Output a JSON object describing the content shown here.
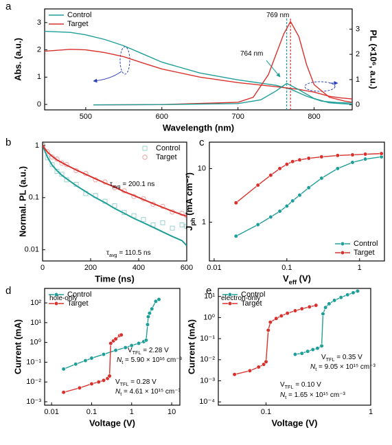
{
  "chart_data": [
    {
      "type": "line",
      "panel_label": "a",
      "xlabel": "Wavelength (nm)",
      "ylabel": "Abs. (a.u.)",
      "y2label": "PL (×10⁶, a.u.)",
      "xlim": [
        446,
        850
      ],
      "xticks": [
        500,
        600,
        700,
        800
      ],
      "ylim": [
        -0.2,
        3.5
      ],
      "yticks": [
        0,
        1,
        2,
        3
      ],
      "y2lim": [
        -0.2,
        3.8
      ],
      "y2ticks": [
        0,
        1,
        2,
        3
      ],
      "legend": "upper left",
      "series": [
        {
          "name": "Control",
          "color": "#1f9e98",
          "x": [
            446,
            480,
            500,
            525,
            550,
            575,
            600,
            650,
            700,
            750,
            770,
            790,
            810,
            830,
            850
          ],
          "values": [
            2.68,
            2.64,
            2.55,
            2.38,
            2.15,
            1.85,
            1.55,
            1.15,
            0.9,
            0.7,
            0.55,
            0.3,
            0.12,
            0.07,
            0.05
          ]
        },
        {
          "name": "Target",
          "color": "#d9302c",
          "x": [
            446,
            480,
            500,
            525,
            550,
            575,
            600,
            650,
            700,
            750,
            780,
            800,
            820,
            835,
            850
          ],
          "values": [
            1.95,
            2.02,
            2.0,
            1.9,
            1.75,
            1.52,
            1.3,
            1.0,
            0.8,
            0.65,
            0.55,
            0.45,
            0.3,
            0.24,
            0.2
          ]
        },
        {
          "color": "#d9302c",
          "axis": "y2",
          "x": [
            510,
            600,
            700,
            720,
            740,
            750,
            760,
            769,
            780,
            790,
            800,
            820,
            840,
            850
          ],
          "values": [
            0,
            0.01,
            0.1,
            0.3,
            1.2,
            2.0,
            2.8,
            3.3,
            2.7,
            1.6,
            0.8,
            0.3,
            0.15,
            0.1
          ]
        },
        {
          "color": "#1f9e98",
          "axis": "y2",
          "x": [
            510,
            600,
            700,
            730,
            750,
            764,
            780,
            800,
            820,
            850
          ],
          "values": [
            0,
            0.01,
            0.05,
            0.2,
            0.55,
            0.85,
            0.6,
            0.25,
            0.08,
            0.02
          ]
        }
      ],
      "vlines": [
        {
          "x": 769,
          "color": "#d9302c"
        },
        {
          "x": 764,
          "color": "#1f9e98"
        }
      ],
      "annotations": [
        {
          "parts": [
            {
              "text": "769 nm"
            }
          ],
          "color": "#d9302c"
        },
        {
          "parts": [
            {
              "text": "764 nm"
            }
          ],
          "color": "#1f9e98"
        }
      ]
    },
    {
      "type": "scatter",
      "panel_label": "b",
      "xlabel": "Time (ns)",
      "ylabel": "Normal. PL (a.u.)",
      "xlim": [
        0,
        600
      ],
      "xticks": [
        0,
        200,
        400,
        600
      ],
      "ylim": [
        0.0061,
        1.16
      ],
      "yscale": "log",
      "yticks": [
        0.01,
        0.1,
        1
      ],
      "legend": "upper right",
      "legend_text_colored": true,
      "series": [
        {
          "name": "Control",
          "color": "#1f9e98",
          "marker": "open-square",
          "x": [
            0,
            20,
            40,
            60,
            80,
            100,
            140,
            180,
            220,
            260,
            300,
            340,
            380,
            420,
            460,
            500,
            540,
            580,
            600
          ],
          "values": [
            1.0,
            0.58,
            0.43,
            0.32,
            0.28,
            0.22,
            0.18,
            0.12,
            0.11,
            0.085,
            0.07,
            0.052,
            0.045,
            0.038,
            0.03,
            0.033,
            0.026,
            0.03,
            0.028
          ]
        },
        {
          "name": "Target",
          "color": "#d9302c",
          "marker": "open-circle",
          "x": [
            0,
            20,
            40,
            60,
            80,
            100,
            140,
            180,
            220,
            260,
            300,
            340,
            380,
            420,
            460,
            500,
            540,
            580,
            600
          ],
          "values": [
            1.0,
            0.76,
            0.6,
            0.55,
            0.46,
            0.43,
            0.33,
            0.29,
            0.22,
            0.2,
            0.155,
            0.135,
            0.105,
            0.095,
            0.075,
            0.068,
            0.053,
            0.05,
            0.045
          ]
        },
        {
          "color": "#1f9e98",
          "style": "line",
          "x": [
            0,
            20,
            40,
            60,
            80,
            100,
            140,
            180,
            220,
            260,
            300,
            340,
            380,
            420,
            460,
            500,
            540,
            580,
            600
          ],
          "values": [
            1.0,
            0.6,
            0.42,
            0.33,
            0.27,
            0.23,
            0.17,
            0.13,
            0.1,
            0.08,
            0.062,
            0.05,
            0.04,
            0.033,
            0.027,
            0.022,
            0.018,
            0.015,
            0.012
          ]
        },
        {
          "color": "#d9302c",
          "style": "line",
          "x": [
            0,
            20,
            40,
            60,
            80,
            100,
            140,
            180,
            220,
            260,
            300,
            340,
            380,
            420,
            460,
            500,
            540,
            580,
            600
          ],
          "values": [
            1.0,
            0.75,
            0.62,
            0.53,
            0.47,
            0.42,
            0.34,
            0.28,
            0.23,
            0.19,
            0.16,
            0.13,
            0.11,
            0.092,
            0.077,
            0.065,
            0.055,
            0.047,
            0.044
          ]
        }
      ],
      "annotations": [
        {
          "parts": [
            {
              "text": "τ"
            },
            {
              "text": "avg",
              "pos": "sub"
            },
            {
              "text": " = 200.1 ns"
            }
          ],
          "color": "#d9302c"
        },
        {
          "parts": [
            {
              "text": "τ"
            },
            {
              "text": "avg",
              "pos": "sub"
            },
            {
              "text": " = 110.5 ns"
            }
          ],
          "color": "#1f9e98"
        }
      ]
    },
    {
      "type": "line",
      "panel_label": "c",
      "xlabel": [
        {
          "text": "V"
        },
        {
          "text": "eff",
          "pos": "sub"
        },
        {
          "text": " (V)"
        }
      ],
      "ylabel": [
        {
          "text": "J"
        },
        {
          "text": "ph",
          "pos": "sub"
        },
        {
          "text": " (mA cm⁻²)"
        }
      ],
      "xlim": [
        0.0086,
        2.2
      ],
      "xscale": "log",
      "xticks": [
        0.01,
        0.1,
        1
      ],
      "ylim": [
        0.19,
        31
      ],
      "yscale": "log",
      "yticks": [
        1,
        10
      ],
      "legend": "lower right",
      "series": [
        {
          "name": "Control",
          "color": "#1f9e98",
          "marker": "circle",
          "x": [
            0.02,
            0.04,
            0.06,
            0.08,
            0.1,
            0.12,
            0.15,
            0.2,
            0.3,
            0.5,
            0.8,
            1.2,
            2
          ],
          "values": [
            0.55,
            0.9,
            1.25,
            1.6,
            2.0,
            2.5,
            3.2,
            4.4,
            6.6,
            10,
            13,
            15,
            16.5
          ]
        },
        {
          "name": "Target",
          "color": "#d9302c",
          "marker": "circle",
          "x": [
            0.02,
            0.04,
            0.06,
            0.08,
            0.1,
            0.12,
            0.15,
            0.2,
            0.3,
            0.5,
            0.8,
            1.2,
            2
          ],
          "values": [
            2.3,
            4.9,
            7.5,
            10,
            12,
            13.5,
            14.5,
            15.5,
            16.5,
            17.5,
            18,
            18.5,
            19
          ]
        }
      ]
    },
    {
      "type": "line",
      "panel_label": "d",
      "xlabel": "Voltage (V)",
      "ylabel": "Current (mA)",
      "xlim": [
        0.0067,
        16
      ],
      "xscale": "log",
      "xticks": [
        0.01,
        0.1,
        1,
        10
      ],
      "ylim": [
        0.00067,
        540
      ],
      "yscale": "log",
      "yticks": [
        {
          "value": 0.001,
          "label": "10⁻³"
        },
        {
          "value": 0.01,
          "label": "10⁻²"
        },
        {
          "value": 0.1,
          "label": "10⁻¹"
        },
        {
          "value": 1,
          "label": "10⁰"
        },
        {
          "value": 10,
          "label": "10¹"
        },
        {
          "value": 100,
          "label": "10²"
        }
      ],
      "legend": "upper left",
      "series": [
        {
          "name": "Control",
          "color": "#1f9e98",
          "marker": "circle",
          "x": [
            0.02,
            0.04,
            0.07,
            0.1,
            0.2,
            0.4,
            0.7,
            1,
            1.5,
            2,
            2.3,
            2.5,
            2.6,
            2.8,
            3.2,
            4,
            4.8
          ],
          "values": [
            0.045,
            0.08,
            0.12,
            0.16,
            0.25,
            0.4,
            0.55,
            0.7,
            0.9,
            1.1,
            1.3,
            8,
            20,
            30,
            50,
            120,
            150
          ]
        },
        {
          "name": "Target",
          "color": "#d9302c",
          "marker": "circle",
          "x": [
            0.02,
            0.05,
            0.1,
            0.15,
            0.2,
            0.25,
            0.28,
            0.3,
            0.35,
            0.4,
            0.5,
            0.55
          ],
          "values": [
            0.003,
            0.005,
            0.008,
            0.01,
            0.012,
            0.015,
            0.02,
            0.9,
            1.2,
            1.5,
            2.2,
            2.4
          ]
        }
      ],
      "annotations": [
        {
          "parts": [
            {
              "text": "hole-only"
            }
          ],
          "color": "#000000"
        },
        {
          "parts": [
            {
              "text": "V"
            },
            {
              "text": "TFL",
              "pos": "sub"
            },
            {
              "text": " = 2.28 V"
            }
          ],
          "color": "#1f9e98"
        },
        {
          "parts": [
            {
              "text": "N",
              "pos": "italic"
            },
            {
              "text": "t",
              "pos": "sub"
            },
            {
              "text": " = 5.90 × 10¹⁶ cm⁻³"
            }
          ],
          "color": "#1f9e98"
        },
        {
          "parts": [
            {
              "text": "V"
            },
            {
              "text": "TFL",
              "pos": "sub"
            },
            {
              "text": " = 0.28 V"
            }
          ],
          "color": "#d9302c"
        },
        {
          "parts": [
            {
              "text": "N",
              "pos": "italic"
            },
            {
              "text": "t",
              "pos": "sub"
            },
            {
              "text": " = 4.61 × 10¹⁵ cm⁻³"
            }
          ],
          "color": "#d9302c"
        }
      ]
    },
    {
      "type": "line",
      "panel_label": "e",
      "xlabel": "Voltage (V)",
      "ylabel": "Current (mA)",
      "xlim": [
        0.035,
        1
      ],
      "xscale": "log",
      "xticks": [
        0.1,
        1
      ],
      "ylim": [
        7e-05,
        24
      ],
      "yscale": "log",
      "yticks": [
        {
          "value": 0.0001,
          "label": "10⁻⁴"
        },
        {
          "value": 0.001,
          "label": "10⁻³"
        },
        {
          "value": 0.01,
          "label": "10⁻²"
        },
        {
          "value": 0.1,
          "label": "10⁻¹"
        },
        {
          "value": 1,
          "label": "10⁰"
        },
        {
          "value": 10,
          "label": "10¹"
        }
      ],
      "legend": "upper left",
      "series": [
        {
          "name": "Control",
          "color": "#1f9e98",
          "marker": "circle",
          "x": [
            0.19,
            0.22,
            0.25,
            0.28,
            0.31,
            0.34,
            0.35,
            0.37,
            0.4,
            0.45,
            0.52,
            0.6,
            0.68,
            0.75
          ],
          "values": [
            0.018,
            0.02,
            0.025,
            0.03,
            0.035,
            0.045,
            1.5,
            3,
            4.5,
            6.5,
            9,
            12,
            15,
            18
          ]
        },
        {
          "name": "Target",
          "color": "#d9302c",
          "marker": "circle",
          "x": [
            0.05,
            0.07,
            0.085,
            0.095,
            0.1,
            0.105,
            0.11,
            0.125,
            0.14,
            0.16,
            0.19,
            0.22,
            0.26,
            0.3
          ],
          "values": [
            0.002,
            0.003,
            0.0045,
            0.006,
            0.008,
            0.25,
            0.6,
            0.9,
            1.2,
            1.6,
            2.1,
            2.6,
            3.2,
            3.8
          ]
        }
      ],
      "annotations": [
        {
          "parts": [
            {
              "text": "electron-only"
            }
          ],
          "color": "#000000"
        },
        {
          "parts": [
            {
              "text": "V"
            },
            {
              "text": "TFL",
              "pos": "sub"
            },
            {
              "text": " = 0.35 V"
            }
          ],
          "color": "#1f9e98"
        },
        {
          "parts": [
            {
              "text": "N",
              "pos": "italic"
            },
            {
              "text": "t",
              "pos": "sub"
            },
            {
              "text": " = 9.05 × 10¹⁵ cm⁻³"
            }
          ],
          "color": "#1f9e98"
        },
        {
          "parts": [
            {
              "text": "V"
            },
            {
              "text": "TFL",
              "pos": "sub"
            },
            {
              "text": " = 0.10 V"
            }
          ],
          "color": "#d9302c"
        },
        {
          "parts": [
            {
              "text": "N",
              "pos": "italic"
            },
            {
              "text": "t",
              "pos": "sub"
            },
            {
              "text": " = 1.65 × 10¹⁵ cm⁻³"
            }
          ],
          "color": "#d9302c"
        }
      ]
    }
  ]
}
